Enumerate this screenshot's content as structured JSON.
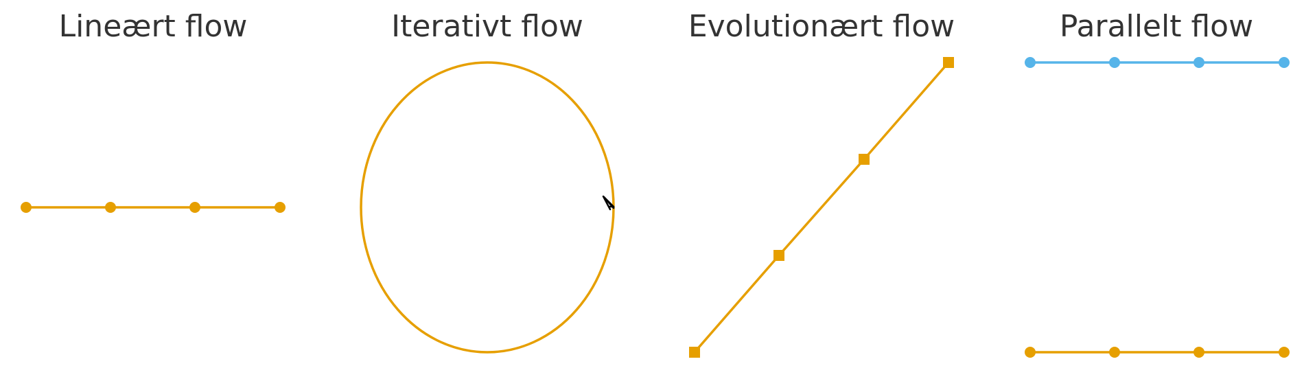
{
  "panels": [
    {
      "title": "Lineært flow"
    },
    {
      "title": "Iterativt flow"
    },
    {
      "title": "Evolutionært flow"
    },
    {
      "title": "Parallelt flow"
    }
  ],
  "colors": {
    "primary": "#E69F00",
    "secondary": "#56B4E9",
    "title": "#333333",
    "arrow": "#000000"
  }
}
